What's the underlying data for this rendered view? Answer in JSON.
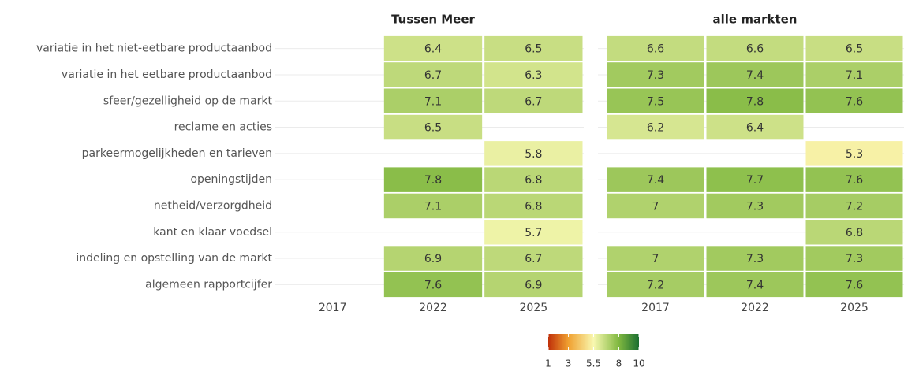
{
  "chart_data": {
    "type": "heatmap",
    "rows": [
      "variatie in het niet-eetbare productaanbod",
      "variatie in het eetbare productaanbod",
      "sfeer/gezelligheid op de markt",
      "reclame en acties",
      "parkeermogelijkheden en tarieven",
      "openingstijden",
      "netheid/verzorgdheid",
      "kant en klaar voedsel",
      "indeling en opstelling van de markt",
      "algemeen rapportcijfer"
    ],
    "facets": [
      {
        "title": "Tussen Meer",
        "series": [
          {
            "name": "2017",
            "values": [
              null,
              null,
              null,
              null,
              null,
              null,
              null,
              null,
              null,
              null
            ]
          },
          {
            "name": "2022",
            "values": [
              6.4,
              6.7,
              7.1,
              6.5,
              null,
              7.8,
              7.1,
              null,
              6.9,
              7.6
            ]
          },
          {
            "name": "2025",
            "values": [
              6.5,
              6.3,
              6.7,
              null,
              5.8,
              6.8,
              6.8,
              5.7,
              6.7,
              6.9
            ]
          }
        ]
      },
      {
        "title": "alle markten",
        "series": [
          {
            "name": "2017",
            "values": [
              6.6,
              7.3,
              7.5,
              6.2,
              null,
              7.4,
              7,
              null,
              7,
              7.2
            ]
          },
          {
            "name": "2022",
            "values": [
              6.6,
              7.4,
              7.8,
              6.4,
              null,
              7.7,
              7.3,
              null,
              7.3,
              7.4
            ]
          },
          {
            "name": "2025",
            "values": [
              6.5,
              7.1,
              7.6,
              null,
              5.3,
              7.6,
              7.2,
              6.8,
              7.3,
              7.6
            ]
          }
        ]
      }
    ],
    "legend_ticks": [
      1,
      3,
      5.5,
      8,
      10
    ],
    "legend_colors": [
      "#c0300a",
      "#f0a030",
      "#f8f8b0",
      "#80b840",
      "#1a6e30"
    ]
  }
}
